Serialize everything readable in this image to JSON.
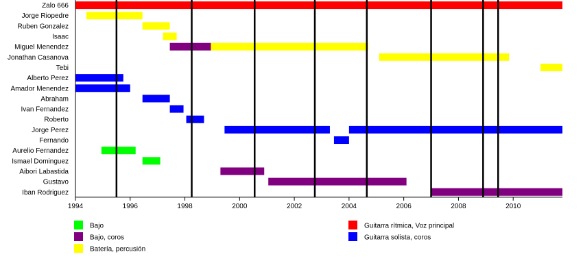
{
  "chart_data": {
    "type": "timeline",
    "title": "",
    "xlabel": "",
    "ylabel": "",
    "xlim": [
      1994,
      2011.8
    ],
    "x_ticks": [
      "1994",
      "1996",
      "1998",
      "2000",
      "2002",
      "2004",
      "2006",
      "2008",
      "2010"
    ],
    "grid": false,
    "legend_position": "bottom",
    "vertical_markers": [
      1995.5,
      1998.25,
      2000.55,
      2002.75,
      2004.65,
      2007.0,
      2008.9,
      2009.45
    ],
    "roles": [
      {
        "key": "bajo",
        "label": "Bajo",
        "color": "#00ff00"
      },
      {
        "key": "bajo_coros",
        "label": "Bajo, coros",
        "color": "#800080"
      },
      {
        "key": "bateria",
        "label": "Batería, percusión",
        "color": "#ffff00"
      },
      {
        "key": "guitarra_ritmica",
        "label": "Guitarra rítmica, Voz principal",
        "color": "#ff0000"
      },
      {
        "key": "guitarra_solista",
        "label": "Guitarra solista, coros",
        "color": "#0000ff"
      }
    ],
    "members": [
      {
        "name": "Zalo 666",
        "periods": [
          {
            "start": 1994.0,
            "end": 2011.8,
            "role": "guitarra_ritmica"
          }
        ]
      },
      {
        "name": "Jorge Riopedre",
        "periods": [
          {
            "start": 1994.4,
            "end": 1996.45,
            "role": "bateria"
          }
        ]
      },
      {
        "name": "Ruben Gonzalez",
        "periods": [
          {
            "start": 1996.45,
            "end": 1997.45,
            "role": "bateria"
          }
        ]
      },
      {
        "name": "Isaac",
        "periods": [
          {
            "start": 1997.2,
            "end": 1997.7,
            "role": "bateria"
          }
        ]
      },
      {
        "name": "Miguel Menendez",
        "periods": [
          {
            "start": 1997.45,
            "end": 1998.95,
            "role": "bajo_coros"
          },
          {
            "start": 1998.95,
            "end": 2004.7,
            "role": "bateria"
          }
        ]
      },
      {
        "name": "Jonathan Casanova",
        "periods": [
          {
            "start": 2005.1,
            "end": 2009.85,
            "role": "bateria"
          }
        ]
      },
      {
        "name": "Tebi",
        "periods": [
          {
            "start": 2011.0,
            "end": 2011.8,
            "role": "bateria"
          }
        ]
      },
      {
        "name": "Alberto Perez",
        "periods": [
          {
            "start": 1994.0,
            "end": 1995.75,
            "role": "guitarra_solista"
          }
        ]
      },
      {
        "name": "Amador Menendez",
        "periods": [
          {
            "start": 1994.0,
            "end": 1996.0,
            "role": "guitarra_solista"
          }
        ]
      },
      {
        "name": "Abraham",
        "periods": [
          {
            "start": 1996.45,
            "end": 1997.45,
            "role": "guitarra_solista"
          }
        ]
      },
      {
        "name": "Ivan Fernandez",
        "periods": [
          {
            "start": 1997.45,
            "end": 1997.95,
            "role": "guitarra_solista"
          }
        ]
      },
      {
        "name": "Roberto",
        "periods": [
          {
            "start": 1998.05,
            "end": 1998.7,
            "role": "guitarra_solista"
          }
        ]
      },
      {
        "name": "Jorge Perez",
        "periods": [
          {
            "start": 1999.45,
            "end": 2003.3,
            "role": "guitarra_solista"
          },
          {
            "start": 2004.0,
            "end": 2011.8,
            "role": "guitarra_solista"
          }
        ]
      },
      {
        "name": "Fernando",
        "periods": [
          {
            "start": 2003.45,
            "end": 2004.0,
            "role": "guitarra_solista"
          }
        ]
      },
      {
        "name": "Aurelio Fernandez",
        "periods": [
          {
            "start": 1994.95,
            "end": 1996.2,
            "role": "bajo"
          }
        ]
      },
      {
        "name": "Ismael Dominguez",
        "periods": [
          {
            "start": 1996.45,
            "end": 1997.1,
            "role": "bajo"
          }
        ]
      },
      {
        "name": "Aibori Labastida",
        "periods": [
          {
            "start": 1999.3,
            "end": 2000.9,
            "role": "bajo_coros"
          }
        ]
      },
      {
        "name": "Gustavo",
        "periods": [
          {
            "start": 2001.05,
            "end": 2006.1,
            "role": "bajo_coros"
          }
        ]
      },
      {
        "name": "Iban Rodriguez",
        "periods": [
          {
            "start": 2007.0,
            "end": 2011.8,
            "role": "bajo_coros"
          }
        ]
      }
    ]
  }
}
